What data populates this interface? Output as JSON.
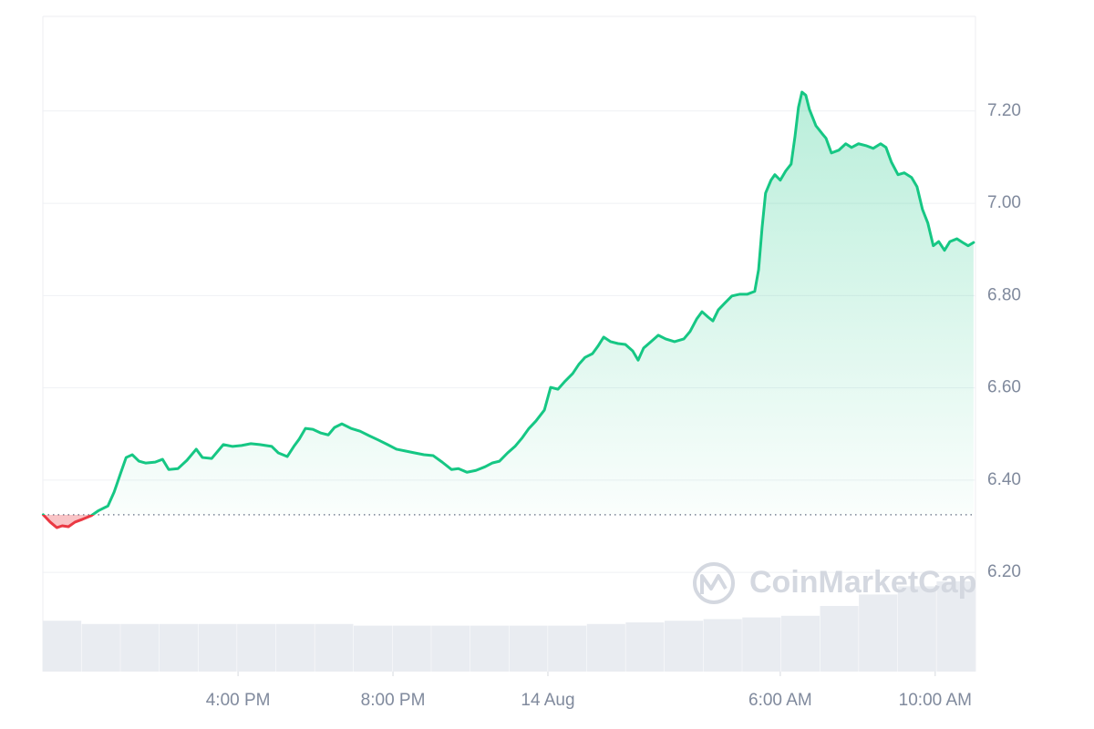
{
  "chart_data": {
    "type": "line",
    "watermark": "CoinMarketCap",
    "x": [
      10.97,
      11.15,
      11.32,
      11.46,
      11.62,
      11.79,
      11.98,
      12.21,
      12.4,
      12.64,
      12.8,
      12.96,
      13.11,
      13.27,
      13.44,
      13.62,
      13.86,
      14.05,
      14.21,
      14.45,
      14.68,
      14.92,
      15.08,
      15.32,
      15.62,
      15.86,
      16.09,
      16.33,
      16.56,
      16.87,
      17.04,
      17.27,
      17.44,
      17.58,
      17.74,
      17.93,
      18.14,
      18.33,
      18.49,
      18.68,
      18.92,
      19.15,
      19.39,
      19.62,
      19.86,
      20.09,
      20.33,
      20.56,
      20.8,
      21.04,
      21.27,
      21.51,
      21.69,
      21.91,
      22.14,
      22.38,
      22.56,
      22.75,
      22.96,
      23.15,
      23.34,
      23.51,
      23.69,
      23.91,
      24.07,
      24.26,
      24.45,
      24.64,
      24.8,
      24.96,
      25.15,
      25.29,
      25.44,
      25.62,
      25.81,
      26.0,
      26.19,
      26.33,
      26.47,
      26.66,
      26.85,
      27.04,
      27.27,
      27.51,
      27.67,
      27.84,
      27.98,
      28.14,
      28.26,
      28.4,
      28.56,
      28.75,
      28.96,
      29.15,
      29.34,
      29.44,
      29.53,
      29.62,
      29.76,
      29.86,
      30.0,
      30.14,
      30.28,
      30.38,
      30.47,
      30.56,
      30.66,
      30.75,
      30.92,
      31.08,
      31.18,
      31.32,
      31.51,
      31.69,
      31.84,
      32.02,
      32.21,
      32.4,
      32.59,
      32.73,
      32.87,
      33.04,
      33.2,
      33.39,
      33.53,
      33.67,
      33.81,
      33.95,
      34.09,
      34.24,
      34.38,
      34.56,
      34.71,
      34.85,
      34.99
    ],
    "series": [
      {
        "color": "#16c784",
        "down_color": "#ea3943",
        "values": [
          6.325,
          6.309,
          6.297,
          6.301,
          6.299,
          6.309,
          6.315,
          6.323,
          6.334,
          6.344,
          6.374,
          6.413,
          6.449,
          6.455,
          6.441,
          6.437,
          6.439,
          6.445,
          6.423,
          6.425,
          6.443,
          6.467,
          6.449,
          6.447,
          6.477,
          6.473,
          6.475,
          6.479,
          6.477,
          6.473,
          6.459,
          6.451,
          6.473,
          6.489,
          6.512,
          6.51,
          6.502,
          6.498,
          6.514,
          6.522,
          6.512,
          6.506,
          6.496,
          6.487,
          6.477,
          6.467,
          6.463,
          6.459,
          6.455,
          6.453,
          6.439,
          6.423,
          6.425,
          6.417,
          6.421,
          6.429,
          6.437,
          6.441,
          6.459,
          6.473,
          6.492,
          6.512,
          6.528,
          6.552,
          6.601,
          6.597,
          6.615,
          6.631,
          6.651,
          6.666,
          6.674,
          6.69,
          6.71,
          6.7,
          6.696,
          6.694,
          6.68,
          6.66,
          6.686,
          6.7,
          6.714,
          6.706,
          6.7,
          6.706,
          6.722,
          6.749,
          6.765,
          6.753,
          6.745,
          6.769,
          6.783,
          6.799,
          6.803,
          6.803,
          6.809,
          6.856,
          6.947,
          7.022,
          7.05,
          7.062,
          7.05,
          7.07,
          7.085,
          7.145,
          7.208,
          7.241,
          7.234,
          7.204,
          7.168,
          7.151,
          7.141,
          7.109,
          7.115,
          7.129,
          7.121,
          7.129,
          7.125,
          7.119,
          7.129,
          7.121,
          7.089,
          7.062,
          7.066,
          7.056,
          7.036,
          6.987,
          6.957,
          6.908,
          6.917,
          6.898,
          6.917,
          6.923,
          6.915,
          6.908,
          6.915
        ]
      }
    ],
    "baseline": 6.325,
    "volume": {
      "color": "#e9ecf1",
      "vlim": [
        0,
        100
      ],
      "values": [
        31,
        29,
        29,
        29,
        29,
        29,
        29,
        29,
        28,
        28,
        28,
        28,
        28,
        28,
        29,
        30,
        31,
        32,
        33,
        34,
        40,
        47,
        52,
        55
      ]
    },
    "xlim": [
      10.96,
      35.04
    ],
    "xticks": [
      {
        "value": 16,
        "label": "4:00 PM"
      },
      {
        "value": 20,
        "label": "8:00 PM"
      },
      {
        "value": 24,
        "label": "14 Aug"
      },
      {
        "value": 30,
        "label": "6:00 AM"
      },
      {
        "value": 34,
        "label": "10:00 AM"
      }
    ],
    "ylim": [
      5.985,
      7.405
    ],
    "yticks": [
      {
        "value": 6.2,
        "label": "6.20"
      },
      {
        "value": 6.4,
        "label": "6.40"
      },
      {
        "value": 6.6,
        "label": "6.60"
      },
      {
        "value": 6.8,
        "label": "6.80"
      },
      {
        "value": 7.0,
        "label": "7.00"
      },
      {
        "value": 7.2,
        "label": "7.20"
      }
    ],
    "grid": true
  }
}
